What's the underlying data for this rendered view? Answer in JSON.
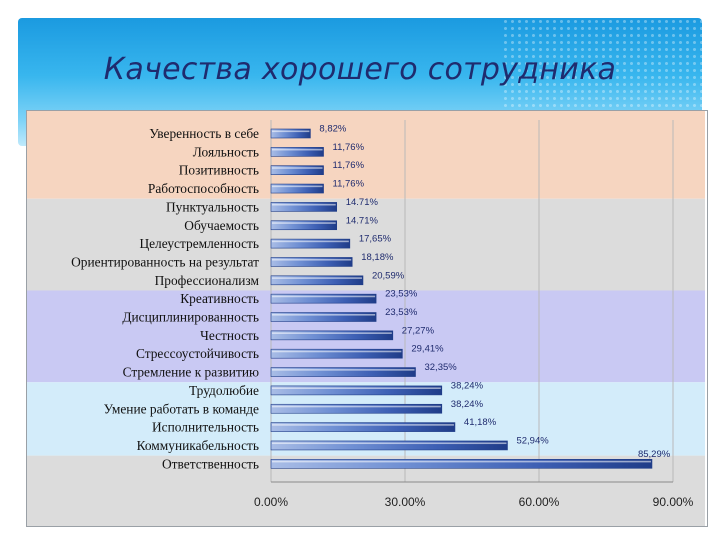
{
  "slide": {
    "title": "Качества хорошего сотрудника"
  },
  "colors": {
    "header": "#2aa8e8",
    "title": "#1f2b6e",
    "band_peach": "#f6d5c0",
    "band_gray": "#dcdcdc",
    "band_lavender": "#c9c9f3",
    "band_lightblue": "#d3ecfa",
    "bar_dark": "#1f3c88",
    "bar_light": "#a9bde6"
  },
  "chart_data": {
    "type": "bar",
    "orientation": "horizontal",
    "categories": [
      "Уверенность в себе",
      "Лояльность",
      "Позитивность",
      "Работоспособность",
      "Пунктуальность",
      "Обучаемость",
      "Целеустремленность",
      "Ориентированность на результат",
      "Профессионализм",
      "Креативность",
      "Дисциплинированность",
      "Честность",
      "Стрессоустойчивость",
      "Стремление к развитию",
      "Трудолюбие",
      "Умение работать в команде",
      "Исполнительность",
      "Коммуникабельность",
      "Ответственность"
    ],
    "values": [
      8.82,
      11.76,
      11.76,
      11.76,
      14.71,
      14.71,
      17.65,
      18.18,
      20.59,
      23.53,
      23.53,
      27.27,
      29.41,
      32.35,
      38.24,
      38.24,
      41.18,
      52.94,
      85.29
    ],
    "value_labels": [
      "8,82%",
      "11,76%",
      "11,76%",
      "11,76%",
      "14.71%",
      "14.71%",
      "17,65%",
      "18,18%",
      "20,59%",
      "23,53%",
      "23,53%",
      "27,27%",
      "29,41%",
      "32,35%",
      "38,24%",
      "38,24%",
      "41,18%",
      "52,94%",
      "85,29%"
    ],
    "xlim": [
      0,
      90
    ],
    "xticks": [
      0,
      30,
      60,
      90
    ],
    "xtick_labels": [
      "0.00%",
      "30.00%",
      "60.00%",
      "90.00%"
    ],
    "grid": true
  }
}
